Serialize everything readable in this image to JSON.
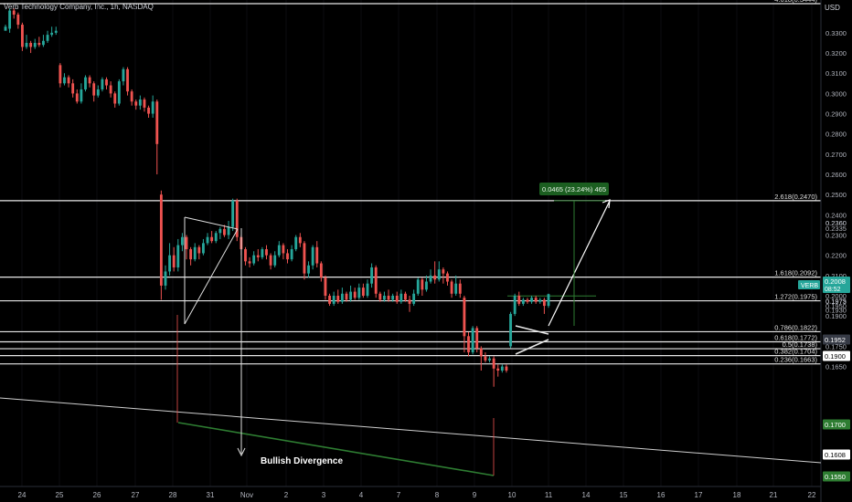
{
  "header": {
    "title": "Verb Technology Company, Inc., 1h, NASDAQ",
    "currency": "USD"
  },
  "chart_data": {
    "type": "candlestick",
    "x_labels": [
      "24",
      "25",
      "26",
      "27",
      "28",
      "31",
      "Nov",
      "2",
      "3",
      "4",
      "7",
      "8",
      "9",
      "10",
      "11",
      "14",
      "15",
      "16",
      "17",
      "18",
      "21",
      "22"
    ],
    "y_ticks": [
      "0.3300",
      "0.3200",
      "0.3100",
      "0.3000",
      "0.2900",
      "0.2800",
      "0.2700",
      "0.2600",
      "0.2500",
      "0.2400",
      "0.2360",
      "0.2300",
      "0.2200",
      "0.2100",
      "0.2000",
      "0.1975",
      "0.1973",
      "0.1900",
      "0.1800",
      "0.1750",
      "0.1650"
    ],
    "fib_levels": [
      {
        "label": "4.618(0.3444)",
        "value": 0.3444
      },
      {
        "label": "2.618(0.2470)",
        "value": 0.247
      },
      {
        "label": "1.618(0.2092)",
        "value": 0.2092
      },
      {
        "label": "1.272(0.1975)",
        "value": 0.1975
      },
      {
        "label": "0.786(0.1822)",
        "value": 0.1822
      },
      {
        "label": "0.618(0.1772)",
        "value": 0.1772
      },
      {
        "label": "0.5(0.1738)",
        "value": 0.1738
      },
      {
        "label": "0.382(0.1704)",
        "value": 0.1704
      },
      {
        "label": "0.236(0.1663)",
        "value": 0.1663
      }
    ],
    "price_badges": [
      {
        "label": "VERB",
        "value": "0.2008",
        "sub": "08:52",
        "color": "#26a69a"
      },
      {
        "label": "",
        "value": "0.1952",
        "sub": "",
        "color": "#363a45"
      },
      {
        "label": "",
        "value": "0.1900",
        "sub": "",
        "color": "#ffffff"
      },
      {
        "label": "",
        "value": "0.1700",
        "sub": "",
        "color": "#2e7d32"
      },
      {
        "label": "",
        "value": "0.1608",
        "sub": "",
        "color": "#ffffff"
      },
      {
        "label": "",
        "value": "0.1550",
        "sub": "",
        "color": "#2e7d32"
      }
    ],
    "extra_axis_labels": [
      "0.2335",
      "0.2360",
      "0.1950",
      "0.1930"
    ],
    "annotations": {
      "measure": "0.0465 (23.24%) 465",
      "divergence": "Bullish Divergence"
    },
    "candles": [
      [
        0.331,
        0.333,
        0.332,
        0.334
      ],
      [
        0.332,
        0.341,
        0.33,
        0.342
      ],
      [
        0.341,
        0.339,
        0.337,
        0.342
      ],
      [
        0.339,
        0.334,
        0.332,
        0.34
      ],
      [
        0.334,
        0.323,
        0.321,
        0.335
      ],
      [
        0.323,
        0.325,
        0.322,
        0.329
      ],
      [
        0.325,
        0.323,
        0.32,
        0.326
      ],
      [
        0.323,
        0.325,
        0.322,
        0.327
      ],
      [
        0.325,
        0.324,
        0.323,
        0.328
      ],
      [
        0.324,
        0.326,
        0.323,
        0.329
      ],
      [
        0.326,
        0.329,
        0.325,
        0.331
      ],
      [
        0.329,
        0.33,
        0.328,
        0.333
      ],
      [
        0.33,
        0.331,
        0.329,
        0.333
      ],
      [
        0.314,
        0.305,
        0.303,
        0.315
      ],
      [
        0.305,
        0.308,
        0.304,
        0.31
      ],
      [
        0.308,
        0.305,
        0.303,
        0.309
      ],
      [
        0.305,
        0.3,
        0.298,
        0.307
      ],
      [
        0.3,
        0.296,
        0.295,
        0.302
      ],
      [
        0.296,
        0.302,
        0.295,
        0.305
      ],
      [
        0.302,
        0.308,
        0.301,
        0.309
      ],
      [
        0.308,
        0.305,
        0.303,
        0.309
      ],
      [
        0.305,
        0.299,
        0.296,
        0.306
      ],
      [
        0.299,
        0.302,
        0.298,
        0.304
      ],
      [
        0.302,
        0.307,
        0.301,
        0.308
      ],
      [
        0.307,
        0.304,
        0.302,
        0.308
      ],
      [
        0.304,
        0.3,
        0.298,
        0.306
      ],
      [
        0.3,
        0.295,
        0.293,
        0.301
      ],
      [
        0.295,
        0.306,
        0.294,
        0.307
      ],
      [
        0.306,
        0.312,
        0.304,
        0.313
      ],
      [
        0.312,
        0.301,
        0.299,
        0.313
      ],
      [
        0.301,
        0.296,
        0.294,
        0.302
      ],
      [
        0.296,
        0.294,
        0.292,
        0.297
      ],
      [
        0.294,
        0.297,
        0.292,
        0.299
      ],
      [
        0.297,
        0.293,
        0.291,
        0.298
      ],
      [
        0.293,
        0.29,
        0.288,
        0.294
      ],
      [
        0.29,
        0.296,
        0.288,
        0.299
      ],
      [
        0.296,
        0.275,
        0.26,
        0.297
      ],
      [
        0.25,
        0.205,
        0.198,
        0.252
      ],
      [
        0.205,
        0.212,
        0.203,
        0.215
      ],
      [
        0.212,
        0.22,
        0.21,
        0.226
      ],
      [
        0.22,
        0.214,
        0.212,
        0.224
      ],
      [
        0.214,
        0.225,
        0.212,
        0.228
      ],
      [
        0.225,
        0.229,
        0.222,
        0.231
      ],
      [
        0.229,
        0.223,
        0.218,
        0.23
      ],
      [
        0.223,
        0.218,
        0.215,
        0.224
      ],
      [
        0.218,
        0.224,
        0.217,
        0.226
      ],
      [
        0.224,
        0.221,
        0.218,
        0.225
      ],
      [
        0.221,
        0.226,
        0.22,
        0.228
      ],
      [
        0.226,
        0.229,
        0.225,
        0.231
      ],
      [
        0.229,
        0.227,
        0.226,
        0.232
      ],
      [
        0.227,
        0.231,
        0.226,
        0.232
      ],
      [
        0.231,
        0.233,
        0.228,
        0.234
      ],
      [
        0.233,
        0.23,
        0.229,
        0.235
      ],
      [
        0.23,
        0.234,
        0.228,
        0.237
      ],
      [
        0.234,
        0.247,
        0.232,
        0.248
      ],
      [
        0.247,
        0.229,
        0.227,
        0.248
      ],
      [
        0.229,
        0.223,
        0.22,
        0.23
      ],
      [
        0.223,
        0.217,
        0.215,
        0.224
      ],
      [
        0.217,
        0.216,
        0.214,
        0.219
      ],
      [
        0.216,
        0.22,
        0.215,
        0.222
      ],
      [
        0.22,
        0.219,
        0.217,
        0.223
      ],
      [
        0.219,
        0.223,
        0.218,
        0.224
      ],
      [
        0.223,
        0.22,
        0.218,
        0.225
      ],
      [
        0.22,
        0.215,
        0.213,
        0.221
      ],
      [
        0.215,
        0.22,
        0.214,
        0.222
      ],
      [
        0.22,
        0.225,
        0.219,
        0.227
      ],
      [
        0.225,
        0.221,
        0.218,
        0.226
      ],
      [
        0.221,
        0.218,
        0.216,
        0.223
      ],
      [
        0.218,
        0.223,
        0.217,
        0.225
      ],
      [
        0.223,
        0.229,
        0.222,
        0.23
      ],
      [
        0.229,
        0.226,
        0.224,
        0.231
      ],
      [
        0.226,
        0.211,
        0.208,
        0.227
      ],
      [
        0.211,
        0.215,
        0.209,
        0.217
      ],
      [
        0.215,
        0.224,
        0.213,
        0.225
      ],
      [
        0.224,
        0.216,
        0.214,
        0.227
      ],
      [
        0.216,
        0.209,
        0.207,
        0.217
      ],
      [
        0.209,
        0.2,
        0.198,
        0.21
      ],
      [
        0.2,
        0.196,
        0.195,
        0.201
      ],
      [
        0.196,
        0.2,
        0.195,
        0.202
      ],
      [
        0.2,
        0.197,
        0.196,
        0.203
      ],
      [
        0.197,
        0.201,
        0.196,
        0.204
      ],
      [
        0.201,
        0.198,
        0.197,
        0.202
      ],
      [
        0.198,
        0.202,
        0.197,
        0.205
      ],
      [
        0.202,
        0.199,
        0.198,
        0.204
      ],
      [
        0.199,
        0.204,
        0.198,
        0.206
      ],
      [
        0.204,
        0.2,
        0.199,
        0.206
      ],
      [
        0.2,
        0.206,
        0.199,
        0.208
      ],
      [
        0.206,
        0.214,
        0.204,
        0.216
      ],
      [
        0.214,
        0.201,
        0.199,
        0.215
      ],
      [
        0.201,
        0.198,
        0.197,
        0.202
      ],
      [
        0.198,
        0.2,
        0.197,
        0.202
      ],
      [
        0.2,
        0.198,
        0.197,
        0.203
      ],
      [
        0.198,
        0.2,
        0.197,
        0.201
      ],
      [
        0.2,
        0.197,
        0.196,
        0.202
      ],
      [
        0.197,
        0.201,
        0.196,
        0.203
      ],
      [
        0.201,
        0.198,
        0.197,
        0.202
      ],
      [
        0.198,
        0.196,
        0.192,
        0.2
      ],
      [
        0.196,
        0.201,
        0.195,
        0.203
      ],
      [
        0.201,
        0.208,
        0.2,
        0.209
      ],
      [
        0.208,
        0.203,
        0.2,
        0.209
      ],
      [
        0.203,
        0.207,
        0.202,
        0.21
      ],
      [
        0.207,
        0.21,
        0.206,
        0.213
      ],
      [
        0.21,
        0.208,
        0.206,
        0.217
      ],
      [
        0.208,
        0.213,
        0.207,
        0.217
      ],
      [
        0.213,
        0.211,
        0.206,
        0.214
      ],
      [
        0.211,
        0.207,
        0.205,
        0.212
      ],
      [
        0.207,
        0.201,
        0.199,
        0.208
      ],
      [
        0.201,
        0.206,
        0.2,
        0.21
      ],
      [
        0.206,
        0.201,
        0.199,
        0.208
      ],
      [
        0.199,
        0.18,
        0.172,
        0.2
      ],
      [
        0.18,
        0.172,
        0.17,
        0.182
      ],
      [
        0.172,
        0.184,
        0.171,
        0.185
      ],
      [
        0.184,
        0.174,
        0.172,
        0.185
      ],
      [
        0.174,
        0.17,
        0.163,
        0.175
      ],
      [
        0.17,
        0.168,
        0.167,
        0.172
      ],
      [
        0.168,
        0.169,
        0.167,
        0.17
      ],
      [
        0.169,
        0.164,
        0.155,
        0.17
      ],
      [
        0.164,
        0.163,
        0.16,
        0.166
      ],
      [
        0.163,
        0.165,
        0.162,
        0.166
      ],
      [
        0.165,
        0.163,
        0.162,
        0.166
      ],
      [
        0.175,
        0.191,
        0.174,
        0.192
      ],
      [
        0.191,
        0.2,
        0.19,
        0.201
      ],
      [
        0.2,
        0.196,
        0.195,
        0.202
      ],
      [
        0.196,
        0.198,
        0.195,
        0.199
      ],
      [
        0.198,
        0.197,
        0.196,
        0.199
      ],
      [
        0.197,
        0.199,
        0.196,
        0.2
      ],
      [
        0.199,
        0.197,
        0.196,
        0.2
      ],
      [
        0.197,
        0.198,
        0.196,
        0.199
      ],
      [
        0.198,
        0.195,
        0.191,
        0.199
      ],
      [
        0.195,
        0.2008,
        0.194,
        0.201
      ]
    ]
  }
}
